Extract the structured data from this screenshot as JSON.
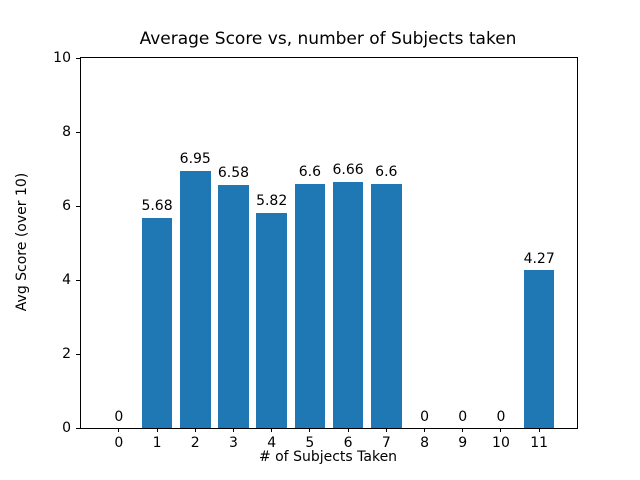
{
  "chart_data": {
    "type": "bar",
    "title": "Average Score vs, number of Subjects taken",
    "xlabel": "# of Subjects Taken",
    "ylabel": "Avg Score (over 10)",
    "categories": [
      "0",
      "1",
      "2",
      "3",
      "4",
      "5",
      "6",
      "7",
      "8",
      "9",
      "10",
      "11"
    ],
    "values": [
      0,
      5.68,
      6.95,
      6.58,
      5.82,
      6.6,
      6.66,
      6.6,
      0,
      0,
      0,
      4.27
    ],
    "bar_labels": [
      "0",
      "5.68",
      "6.95",
      "6.58",
      "5.82",
      "6.6",
      "6.66",
      "6.6",
      "0",
      "0",
      "0",
      "4.27"
    ],
    "yticks": [
      0,
      2,
      4,
      6,
      8,
      10
    ],
    "ytick_labels": [
      "0",
      "2",
      "4",
      "6",
      "8",
      "10"
    ],
    "ylim": [
      0,
      10
    ],
    "xlim": [
      -0.99,
      11.99
    ],
    "bar_width": 0.8,
    "bar_color": "#1f77b4",
    "text_color": "#000000",
    "grid": false,
    "legend": null
  }
}
